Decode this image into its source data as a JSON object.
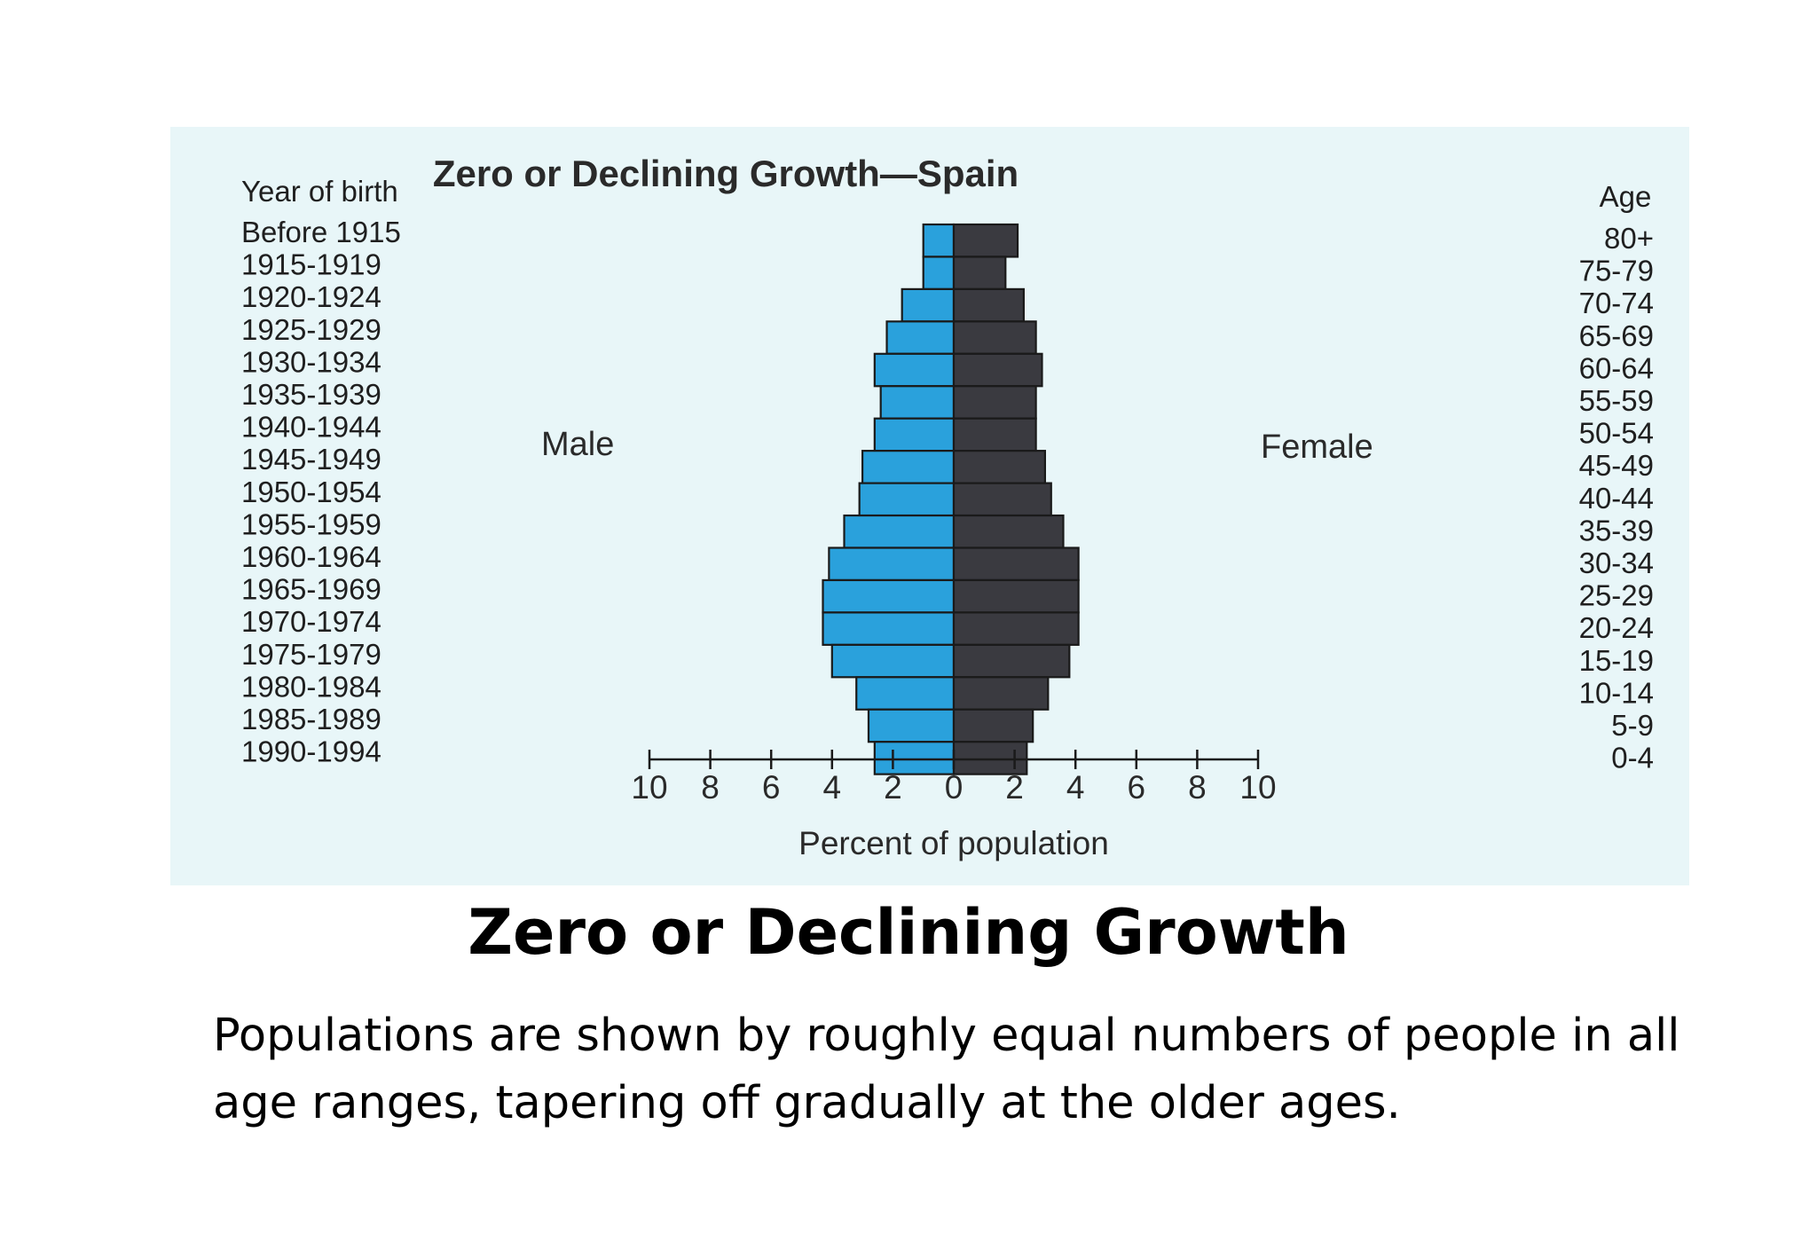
{
  "slide": {
    "heading": "Zero or Declining Growth",
    "body": "Populations are shown by roughly equal numbers  of people in all age ranges, tapering off gradually at the older ages."
  },
  "colors": {
    "panel_background": "#e8f6f8",
    "male": "#2aa1dc",
    "female": "#3a3a40",
    "outline": "#1a1a1a"
  },
  "chart_data": {
    "type": "bar",
    "orientation": "horizontal",
    "title": "Zero or Declining Growth—Spain",
    "left_header": "Year of birth",
    "right_header": "Age",
    "side_labels": {
      "left": "Male",
      "right": "Female"
    },
    "xlabel": "Percent of population",
    "xlim": [
      -10,
      10
    ],
    "xticks": [
      -10,
      -8,
      -6,
      -4,
      -2,
      0,
      2,
      4,
      6,
      8,
      10
    ],
    "xtick_labels": [
      "10",
      "8",
      "6",
      "4",
      "2",
      "0",
      "2",
      "4",
      "6",
      "8",
      "10"
    ],
    "categories": [
      "80+",
      "75-79",
      "70-74",
      "65-69",
      "60-64",
      "55-59",
      "50-54",
      "45-49",
      "40-44",
      "35-39",
      "30-34",
      "25-29",
      "20-24",
      "15-19",
      "10-14",
      "5-9",
      "0-4"
    ],
    "birth_years": [
      "Before 1915",
      "1915-1919",
      "1920-1924",
      "1925-1929",
      "1930-1934",
      "1935-1939",
      "1940-1944",
      "1945-1949",
      "1950-1954",
      "1955-1959",
      "1960-1964",
      "1965-1969",
      "1970-1974",
      "1975-1979",
      "1980-1984",
      "1985-1989",
      "1990-1994"
    ],
    "series": [
      {
        "name": "Male",
        "values": [
          1.0,
          1.0,
          1.7,
          2.2,
          2.6,
          2.4,
          2.6,
          3.0,
          3.1,
          3.6,
          4.1,
          4.3,
          4.3,
          4.0,
          3.2,
          2.8,
          2.6
        ]
      },
      {
        "name": "Female",
        "values": [
          2.1,
          1.7,
          2.3,
          2.7,
          2.9,
          2.7,
          2.7,
          3.0,
          3.2,
          3.6,
          4.1,
          4.1,
          4.1,
          3.8,
          3.1,
          2.6,
          2.4
        ]
      }
    ]
  }
}
